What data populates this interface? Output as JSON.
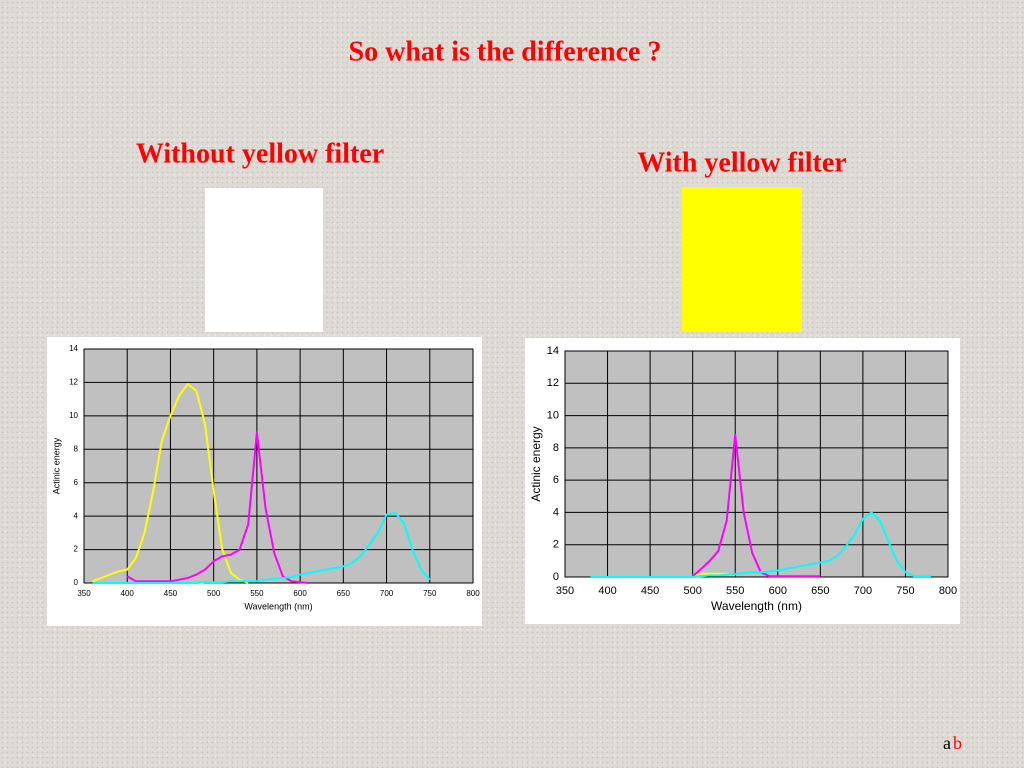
{
  "slide": {
    "title": "So what is the difference ?",
    "left_label": "Without yellow filter",
    "right_label": "With yellow filter",
    "logo": [
      "a",
      "b"
    ]
  },
  "chart_data": [
    {
      "type": "line",
      "ylabel": "Actinic energy",
      "xlabel": "Wavelength (nm)",
      "xlim": [
        350,
        800
      ],
      "xticks": [
        350,
        400,
        450,
        500,
        550,
        600,
        650,
        700,
        750,
        800
      ],
      "ylim": [
        0,
        14
      ],
      "yticks": [
        0,
        2,
        4,
        6,
        8,
        10,
        12,
        14
      ],
      "grid": true,
      "background": "#c0c0c0",
      "x": [
        360,
        370,
        380,
        390,
        400,
        410,
        420,
        430,
        440,
        450,
        460,
        470,
        480,
        490,
        500,
        510,
        520,
        530,
        540,
        550,
        560,
        570,
        580,
        590,
        600,
        610,
        620,
        630,
        640,
        650,
        660,
        670,
        680,
        690,
        700,
        710,
        720,
        730,
        740,
        750,
        760,
        770,
        780
      ],
      "series": [
        {
          "color": "#ffff00",
          "values": [
            0.1,
            0.3,
            0.5,
            0.7,
            0.8,
            1.5,
            3,
            5.5,
            8.5,
            10,
            11.2,
            11.9,
            11.5,
            9.5,
            5.5,
            2,
            0.6,
            0.2,
            0,
            null,
            null,
            null,
            null,
            null,
            null,
            null,
            null,
            null,
            null,
            null,
            null,
            null,
            null,
            null,
            null,
            null,
            null,
            null,
            null,
            null,
            null,
            null,
            null
          ]
        },
        {
          "color": "#ff00ff",
          "values": [
            null,
            null,
            null,
            null,
            0.4,
            0.1,
            0.1,
            0.1,
            0.1,
            0.1,
            0.2,
            0.3,
            0.5,
            0.8,
            1.3,
            1.6,
            1.7,
            2.0,
            3.5,
            9.0,
            4.5,
            1.8,
            0.4,
            0.1,
            0.05,
            0,
            null,
            null,
            null,
            null,
            null,
            null,
            null,
            null,
            null,
            null,
            null,
            null,
            null,
            null,
            null,
            null,
            null
          ]
        },
        {
          "color": "#00ffff",
          "values": [
            0,
            0,
            0,
            0,
            0,
            0,
            0,
            0,
            0,
            0,
            0,
            0,
            0,
            0.05,
            0.05,
            0.05,
            0.1,
            0.1,
            0.1,
            0.1,
            0.2,
            0.25,
            0.3,
            0.35,
            0.5,
            0.6,
            0.7,
            0.8,
            0.9,
            1.0,
            1.2,
            1.6,
            2.3,
            3.0,
            4.1,
            4.2,
            3.6,
            2.0,
            0.8,
            0.2,
            null,
            null,
            null
          ]
        }
      ]
    },
    {
      "type": "line",
      "ylabel": "Actinic energy",
      "xlabel": "Wavelength (nm)",
      "xlim": [
        350,
        800
      ],
      "xticks": [
        350,
        400,
        450,
        500,
        550,
        600,
        650,
        700,
        750,
        800
      ],
      "ylim": [
        0,
        14
      ],
      "yticks": [
        0,
        2,
        4,
        6,
        8,
        10,
        12,
        14
      ],
      "grid": true,
      "background": "#c0c0c0",
      "x": [
        360,
        370,
        380,
        390,
        400,
        410,
        420,
        430,
        440,
        450,
        460,
        470,
        480,
        490,
        500,
        510,
        520,
        530,
        540,
        550,
        560,
        570,
        580,
        590,
        600,
        610,
        620,
        630,
        640,
        650,
        660,
        670,
        680,
        690,
        700,
        710,
        720,
        730,
        740,
        750,
        760,
        770,
        780
      ],
      "series": [
        {
          "color": "#ffff00",
          "values": [
            null,
            null,
            null,
            null,
            null,
            null,
            null,
            null,
            null,
            null,
            null,
            null,
            null,
            null,
            0.1,
            0.2,
            0.2,
            0.2,
            0.2,
            0.1,
            null,
            null,
            null,
            null,
            null,
            null,
            null,
            null,
            null,
            null,
            null,
            null,
            null,
            null,
            null,
            null,
            null,
            null,
            null,
            null,
            null,
            null,
            null
          ]
        },
        {
          "color": "#ff00ff",
          "values": [
            null,
            null,
            null,
            null,
            null,
            null,
            null,
            null,
            null,
            null,
            null,
            null,
            null,
            null,
            0.05,
            0.5,
            1.0,
            1.6,
            3.5,
            8.8,
            4.0,
            1.5,
            0.3,
            0.05,
            0.05,
            0.05,
            0.05,
            0.05,
            0.05,
            0.05,
            null,
            null,
            null,
            null,
            null,
            null,
            null,
            null,
            null,
            null,
            null,
            null,
            null
          ]
        },
        {
          "color": "#00ffff",
          "values": [
            null,
            null,
            0,
            0,
            0,
            0,
            0,
            0,
            0,
            0,
            0,
            0,
            0,
            0,
            0,
            0.05,
            0.1,
            0.1,
            0.15,
            0.2,
            0.25,
            0.3,
            0.3,
            0.35,
            0.4,
            0.5,
            0.6,
            0.7,
            0.8,
            0.9,
            1.0,
            1.3,
            1.9,
            2.6,
            3.6,
            4.0,
            3.5,
            2.2,
            1.0,
            0.3,
            0.05,
            0.05,
            0.05
          ]
        }
      ]
    }
  ]
}
